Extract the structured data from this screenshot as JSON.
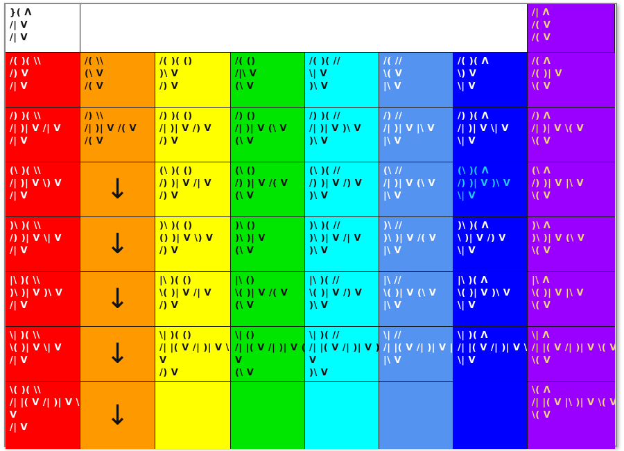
{
  "colors": {
    "red": "#ff0000",
    "orange": "#ff9900",
    "yellow": "#ffff00",
    "green": "#00e600",
    "cyan": "#00ffff",
    "lightblue": "#5593f0",
    "blue": "#0000ff",
    "purple": "#9900ff",
    "white": "#ffffff",
    "text_dark": "#141414",
    "text_light": "#ffffff",
    "text_purple_header": "#ffffff",
    "text_purple_body": "#f2d47a",
    "text_blue_highlight": "#23c8ff"
  },
  "icons": {
    "down_arrow": "down-arrow-icon"
  },
  "header": {
    "corner": [
      "}( Λ",
      "/| V",
      "/| V"
    ],
    "purple_header": [
      "/| Λ",
      "/( V",
      "/( V"
    ]
  },
  "rows": [
    {
      "red": [
        "/( )( \\\\",
        "/) V",
        "/| V"
      ],
      "orange": [
        "/( \\\\",
        "(\\ V",
        "/( V"
      ],
      "yellow": [
        "/( )( ()",
        ")\\ V",
        "/) V"
      ],
      "green": [
        "/( ()",
        "/|\\ V",
        "(\\ V"
      ],
      "cyan": [
        "/( )( //",
        "\\| V",
        ")\\ V"
      ],
      "lightblue": [
        "/( //",
        "\\( V",
        "|\\ V"
      ],
      "blue": [
        "/( )( Λ",
        "\\) V",
        "\\| V"
      ],
      "purple": [
        "/( Λ",
        "/( )| V",
        "\\( V"
      ]
    },
    {
      "red": [
        "/) )( \\\\",
        "/| )| V /| V",
        "/| V"
      ],
      "orange": [
        "/) \\\\",
        "/| )| V /( V",
        "/( V"
      ],
      "yellow": [
        "/) )( ()",
        "/| )| V /) V",
        "/) V"
      ],
      "green": [
        "/) ()",
        "/| )| V (\\ V",
        "(\\ V"
      ],
      "cyan": [
        "/) )( //",
        "/| )| V )\\ V",
        ")\\ V"
      ],
      "lightblue": [
        "/) //",
        "/| )| V |\\ V",
        "|\\ V"
      ],
      "blue": [
        "/) )( Λ",
        "/| )| V \\| V",
        "\\| V"
      ],
      "purple": [
        "/) Λ",
        "/| )| V \\( V",
        "\\( V"
      ]
    },
    {
      "red": [
        "(\\ )( \\\\",
        "/| )| V \\) V",
        "/| V"
      ],
      "orange": null,
      "yellow": [
        "(\\ )( ()",
        "/) )| V /| V",
        "/) V"
      ],
      "green": [
        "(\\ ()",
        "/) )| V /( V",
        "(\\ V"
      ],
      "cyan": [
        "(\\ )( //",
        "/) )| V /) V",
        ")\\ V"
      ],
      "lightblue": [
        "(\\ //",
        "/| )| V (\\ V",
        "|\\ V"
      ],
      "blue": [
        "(\\ )( Λ",
        "/) )| V )\\ V",
        "\\| V"
      ],
      "purple": [
        "(\\ Λ",
        "/) )| V |\\ V",
        "\\( V"
      ]
    },
    {
      "red": [
        ")\\ )( \\\\",
        "/) )| V \\| V",
        "/| V"
      ],
      "orange": null,
      "yellow": [
        ")\\ )( ()",
        "() )| V \\) V",
        "/) V"
      ],
      "green": [
        ")\\ ()",
        ")\\ )| V",
        "(\\ V"
      ],
      "cyan": [
        ")\\ )( //",
        ")\\ )| V /| V",
        ")\\ V"
      ],
      "lightblue": [
        ")\\ //",
        ")\\ )| V /( V",
        "|\\ V"
      ],
      "blue": [
        ")\\ )( Λ",
        "\\ )| V /) V",
        "\\| V"
      ],
      "purple": [
        ")\\ Λ",
        ")\\ )| V (\\ V",
        "\\( V"
      ]
    },
    {
      "red": [
        "|\\ )( \\\\",
        ")\\ )| V )\\ V",
        "/| V"
      ],
      "orange": null,
      "yellow": [
        "|\\ )( ()",
        "\\( )| V /| V",
        "/) V"
      ],
      "green": [
        "|\\ ()",
        "\\( )| V /( V",
        "(\\ V"
      ],
      "cyan": [
        "|\\ )( //",
        "\\( )| V /) V",
        ")\\ V"
      ],
      "lightblue": [
        "|\\ //",
        "\\( )| V (\\ V",
        "|\\ V"
      ],
      "blue": [
        "|\\ )( Λ",
        "\\( )| V )\\ V",
        "\\| V"
      ],
      "purple": [
        "|\\ Λ",
        "\\( )| V |\\ V",
        "\\( V"
      ]
    },
    {
      "red": [
        "\\| )( \\\\",
        "\\( )| V \\| V",
        "/| V"
      ],
      "orange": null,
      "yellow": [
        "\\| )( ()",
        "/| |( V /| )| V \\ /)",
        "V",
        "/) V"
      ],
      "green": [
        "\\| ()",
        "/| |( V /| )| V (\\",
        "V",
        "(\\ V"
      ],
      "cyan": [
        "\\| )( //",
        "/| |( V /| )| V )\\",
        "V",
        ")\\ V"
      ],
      "lightblue": [
        "\\| //",
        "/| |( V /| )| V |\\ V",
        "|\\ V"
      ],
      "blue": [
        "\\| )( Λ",
        "/| |( V /| )| V \\| V",
        "\\| V"
      ],
      "purple": [
        "\\| Λ",
        "/| |( V /| )| V \\( V",
        "\\( V"
      ]
    },
    {
      "red": [
        "\\( )( \\\\",
        "/| |( V /| )| V \\)",
        "V",
        "/| V"
      ],
      "orange": null,
      "yellow": [],
      "green": [],
      "cyan": [],
      "lightblue": [],
      "blue": [],
      "purple": [
        "\\( Λ",
        "/| |( V |\\ )| V \\( V",
        "\\( V"
      ]
    }
  ]
}
